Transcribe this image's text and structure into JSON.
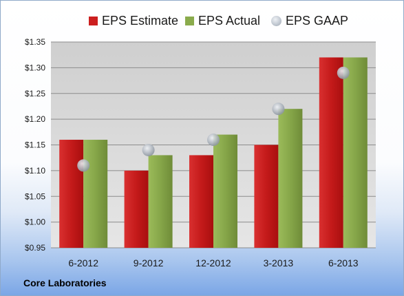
{
  "chart_data": {
    "type": "bar",
    "title": "",
    "xlabel": "",
    "ylabel": "",
    "categories": [
      "6-2012",
      "9-2012",
      "12-2012",
      "3-2013",
      "6-2013"
    ],
    "series": [
      {
        "name": "EPS Estimate",
        "kind": "bar",
        "color": "#cc1f1f",
        "values": [
          1.16,
          1.1,
          1.13,
          1.15,
          1.32
        ]
      },
      {
        "name": "EPS Actual",
        "kind": "bar",
        "color": "#8aab4c",
        "values": [
          1.16,
          1.13,
          1.17,
          1.22,
          1.32
        ]
      },
      {
        "name": "EPS GAAP",
        "kind": "marker",
        "color": "#b9bfc7",
        "values": [
          1.11,
          1.14,
          1.16,
          1.22,
          1.29
        ]
      }
    ],
    "ylim": [
      0.95,
      1.35
    ],
    "yticks": [
      "$0.95",
      "$1.00",
      "$1.05",
      "$1.10",
      "$1.15",
      "$1.20",
      "$1.25",
      "$1.30",
      "$1.35"
    ],
    "grid": true,
    "legend_position": "top"
  },
  "company": "Core Laboratories"
}
